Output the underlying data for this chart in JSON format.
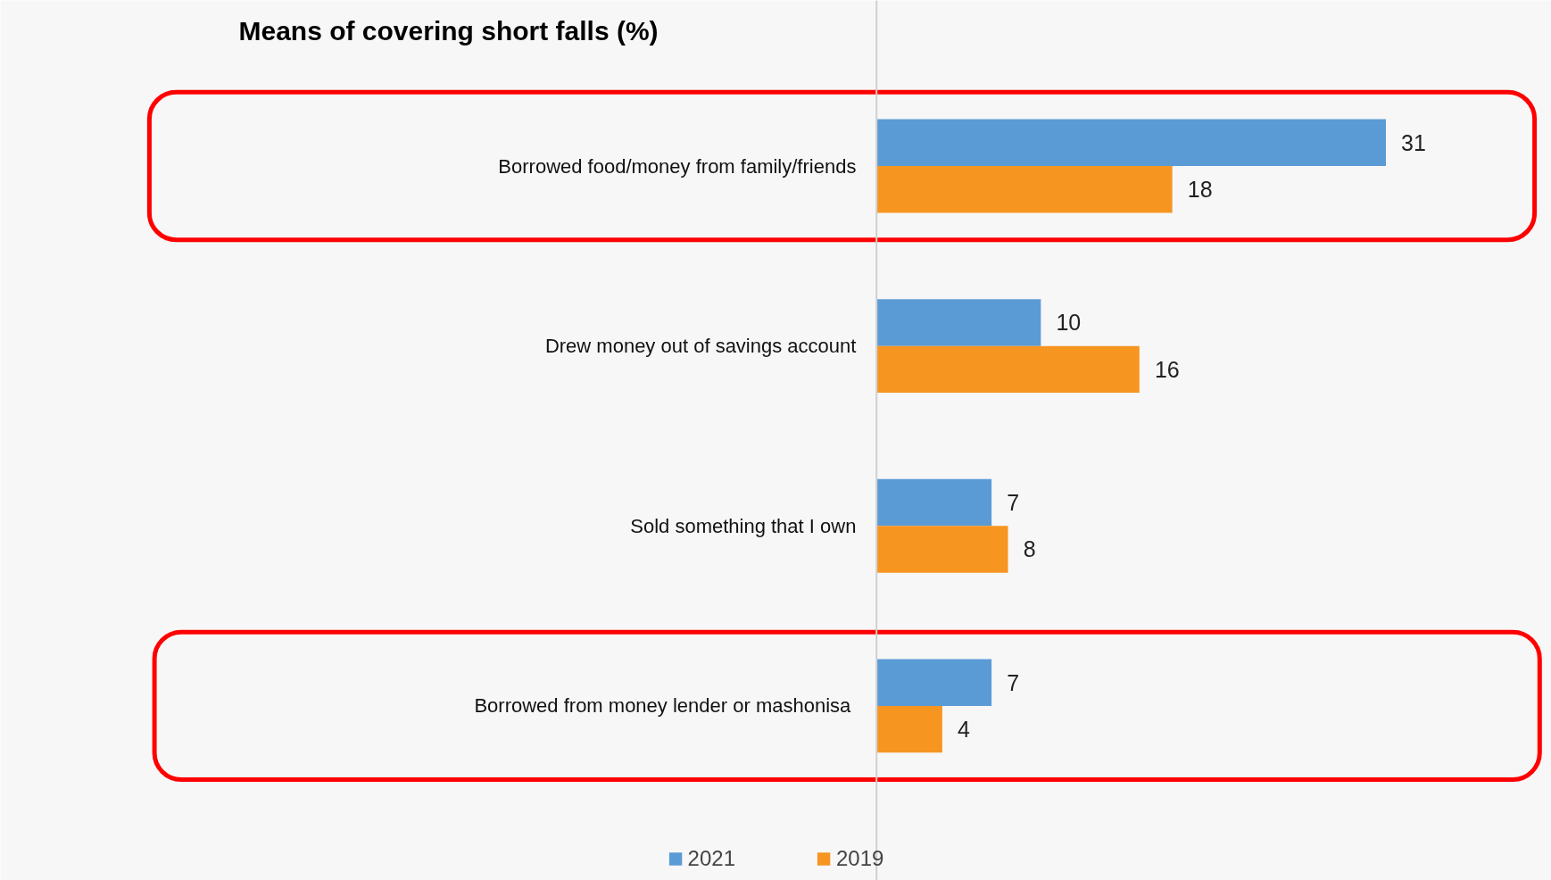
{
  "chart_data": {
    "type": "bar",
    "orientation": "horizontal",
    "title": "Means of covering short falls (%)",
    "categories": [
      "Borrowed food/money from family/friends",
      "Drew money out of savings account",
      "Sold something that I own",
      "Borrowed  from money lender or mashonisa"
    ],
    "series": [
      {
        "name": "2021",
        "color": "#5b9bd5",
        "values": [
          31,
          10,
          7,
          7
        ]
      },
      {
        "name": "2019",
        "color": "#f79521",
        "values": [
          18,
          16,
          8,
          4
        ]
      }
    ],
    "data_labels": true,
    "legend": "bottom",
    "grid": false
  }
}
